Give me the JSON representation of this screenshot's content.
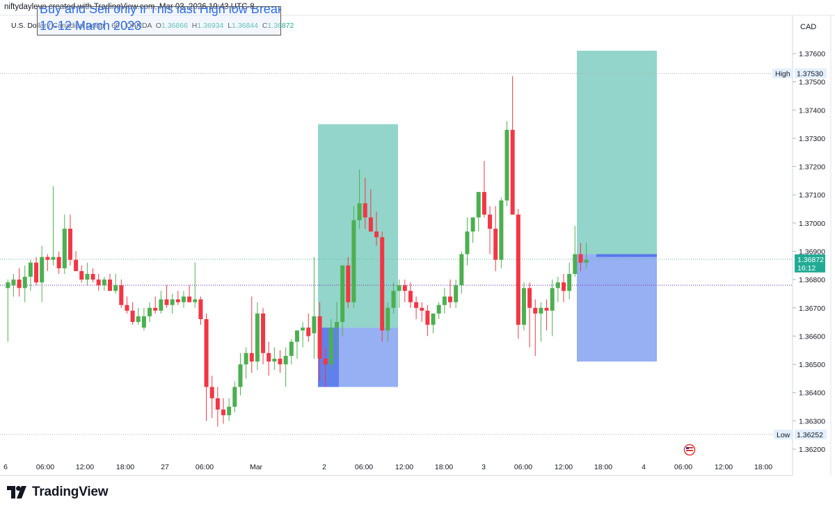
{
  "byline": "niftydayleve created with TradingView.com, Mar 03, 2026 19:43 UTC-8",
  "symbol": {
    "name": "U.S. Dollar / Canadian Dollar",
    "timeframe": "60",
    "exchange": "OANDA",
    "open_label": "O",
    "open": "1.36866",
    "high_label": "H",
    "high": "1.36934",
    "low_label": "L",
    "low": "1.36844",
    "close_label": "C",
    "close": "1.36872"
  },
  "note": {
    "line1": "Buy and Sell only if This last High low Breaks",
    "line2": "10-12 March 2023"
  },
  "currency": "CAD",
  "brand": "TradingView",
  "markers": {
    "high_label": "High",
    "high_value": "1.37530",
    "low_label": "Low",
    "low_value": "1.36252",
    "last_price": "1.36872",
    "countdown": "16:12"
  },
  "colors": {
    "up": "#26a69a",
    "up_body": "#4caf50",
    "down": "#f23645",
    "target_zone": "#8dd3c7",
    "stop_zone": "#8ea8f2",
    "dotted_line": "#8a45b6"
  },
  "chart_data": {
    "type": "candlestick",
    "y_ticks": [
      "1.36200",
      "1.36300",
      "1.36400",
      "1.36500",
      "1.36600",
      "1.36700",
      "1.36800",
      "1.36900",
      "1.37000",
      "1.37100",
      "1.37200",
      "1.37300",
      "1.37400",
      "1.37500",
      "1.37600"
    ],
    "x_ticks": [
      "6",
      "06:00",
      "12:00",
      "18:00",
      "27",
      "06:00",
      "Mar",
      "2",
      "06:00",
      "12:00",
      "18:00",
      "3",
      "06:00",
      "12:00",
      "18:00",
      "4",
      "06:00",
      "12:00",
      "18:00"
    ],
    "ylim": [
      1.3618,
      1.377
    ],
    "high": 1.3753,
    "low": 1.36252,
    "reference_level": 1.3678,
    "last_price": 1.36872,
    "positions": [
      {
        "type": "long",
        "entry": 1.3663,
        "target": 1.3735,
        "stop": 1.3642
      },
      {
        "type": "long",
        "entry": 1.3689,
        "target": 1.3761,
        "stop": 1.3651
      }
    ],
    "ohlc": [
      [
        1.3677,
        1.368,
        1.3658,
        1.3679
      ],
      [
        1.3678,
        1.3682,
        1.3674,
        1.368
      ],
      [
        1.368,
        1.3684,
        1.3674,
        1.3677
      ],
      [
        1.3677,
        1.3685,
        1.3672,
        1.3681
      ],
      [
        1.3681,
        1.3687,
        1.3676,
        1.3686
      ],
      [
        1.3686,
        1.3688,
        1.3678,
        1.3679
      ],
      [
        1.3679,
        1.3692,
        1.3672,
        1.3688
      ],
      [
        1.3688,
        1.3689,
        1.3683,
        1.3687
      ],
      [
        1.3687,
        1.3713,
        1.3685,
        1.3688
      ],
      [
        1.3688,
        1.369,
        1.3682,
        1.3684
      ],
      [
        1.3684,
        1.3703,
        1.3682,
        1.3698
      ],
      [
        1.3698,
        1.3703,
        1.3685,
        1.3687
      ],
      [
        1.3687,
        1.369,
        1.3683,
        1.3683
      ],
      [
        1.3683,
        1.3685,
        1.3679,
        1.368
      ],
      [
        1.368,
        1.3686,
        1.3678,
        1.3682
      ],
      [
        1.3682,
        1.3684,
        1.3679,
        1.368
      ],
      [
        1.368,
        1.3682,
        1.3676,
        1.3678
      ],
      [
        1.3678,
        1.3681,
        1.3676,
        1.368
      ],
      [
        1.368,
        1.3682,
        1.3677,
        1.3676
      ],
      [
        1.3676,
        1.3682,
        1.3675,
        1.3678
      ],
      [
        1.3678,
        1.368,
        1.367,
        1.3671
      ],
      [
        1.3671,
        1.3674,
        1.3668,
        1.3669
      ],
      [
        1.3669,
        1.3672,
        1.3664,
        1.3665
      ],
      [
        1.3665,
        1.367,
        1.3664,
        1.3667
      ],
      [
        1.3663,
        1.367,
        1.3662,
        1.3667
      ],
      [
        1.3667,
        1.3672,
        1.3665,
        1.367
      ],
      [
        1.367,
        1.3674,
        1.3668,
        1.3669
      ],
      [
        1.3669,
        1.3676,
        1.3668,
        1.3673
      ],
      [
        1.3673,
        1.3678,
        1.367,
        1.3671
      ],
      [
        1.3671,
        1.3675,
        1.3668,
        1.3673
      ],
      [
        1.3673,
        1.3676,
        1.3671,
        1.3672
      ],
      [
        1.3672,
        1.3676,
        1.367,
        1.3674
      ],
      [
        1.3674,
        1.3678,
        1.3672,
        1.3672
      ],
      [
        1.3672,
        1.3686,
        1.367,
        1.3673
      ],
      [
        1.3673,
        1.3674,
        1.3664,
        1.3666
      ],
      [
        1.3666,
        1.3668,
        1.363,
        1.3642
      ],
      [
        1.3642,
        1.3646,
        1.3631,
        1.3638
      ],
      [
        1.3638,
        1.3642,
        1.3628,
        1.3634
      ],
      [
        1.3634,
        1.3638,
        1.3629,
        1.3632
      ],
      [
        1.3632,
        1.3638,
        1.363,
        1.3635
      ],
      [
        1.3635,
        1.3644,
        1.3633,
        1.3642
      ],
      [
        1.3642,
        1.3654,
        1.3639,
        1.365
      ],
      [
        1.365,
        1.3656,
        1.3645,
        1.3654
      ],
      [
        1.3654,
        1.3674,
        1.3647,
        1.3651
      ],
      [
        1.3651,
        1.3672,
        1.3648,
        1.3668
      ],
      [
        1.3668,
        1.367,
        1.365,
        1.3654
      ],
      [
        1.3654,
        1.3658,
        1.3646,
        1.3651
      ],
      [
        1.3651,
        1.3656,
        1.3648,
        1.3652
      ],
      [
        1.3652,
        1.3655,
        1.3647,
        1.365
      ],
      [
        1.365,
        1.3656,
        1.3642,
        1.3653
      ],
      [
        1.3653,
        1.3659,
        1.365,
        1.3658
      ],
      [
        1.3658,
        1.3661,
        1.3652,
        1.3662
      ],
      [
        1.3662,
        1.3665,
        1.3656,
        1.3663
      ],
      [
        1.3663,
        1.3668,
        1.3658,
        1.366
      ],
      [
        1.3661,
        1.3688,
        1.3652,
        1.3667
      ],
      [
        1.3667,
        1.3672,
        1.3644,
        1.3652
      ],
      [
        1.3652,
        1.3656,
        1.3642,
        1.365
      ],
      [
        1.365,
        1.3666,
        1.3648,
        1.3663
      ],
      [
        1.3663,
        1.3672,
        1.3652,
        1.3665
      ],
      [
        1.3665,
        1.3685,
        1.366,
        1.3685
      ],
      [
        1.3685,
        1.3688,
        1.367,
        1.3672
      ],
      [
        1.3672,
        1.3706,
        1.367,
        1.3701
      ],
      [
        1.3701,
        1.3719,
        1.3698,
        1.3707
      ],
      [
        1.3707,
        1.3716,
        1.3698,
        1.3702
      ],
      [
        1.3702,
        1.3712,
        1.3697,
        1.3697
      ],
      [
        1.3697,
        1.3704,
        1.3692,
        1.3695
      ],
      [
        1.3695,
        1.3697,
        1.3658,
        1.3662
      ],
      [
        1.3662,
        1.3672,
        1.3658,
        1.367
      ],
      [
        1.367,
        1.3679,
        1.3668,
        1.3676
      ],
      [
        1.3676,
        1.368,
        1.367,
        1.3678
      ],
      [
        1.3678,
        1.368,
        1.3672,
        1.3676
      ],
      [
        1.3676,
        1.3679,
        1.367,
        1.3672
      ],
      [
        1.3672,
        1.3674,
        1.3666,
        1.367
      ],
      [
        1.367,
        1.3672,
        1.3665,
        1.3669
      ],
      [
        1.3669,
        1.3671,
        1.366,
        1.3664
      ],
      [
        1.3664,
        1.3668,
        1.3661,
        1.3668
      ],
      [
        1.3668,
        1.3672,
        1.3666,
        1.3671
      ],
      [
        1.3671,
        1.3677,
        1.3668,
        1.3674
      ],
      [
        1.3674,
        1.368,
        1.367,
        1.3672
      ],
      [
        1.3672,
        1.368,
        1.367,
        1.3678
      ],
      [
        1.3678,
        1.369,
        1.3675,
        1.3689
      ],
      [
        1.3689,
        1.3702,
        1.3685,
        1.3697
      ],
      [
        1.3697,
        1.3702,
        1.3693,
        1.3702
      ],
      [
        1.3702,
        1.3711,
        1.3697,
        1.3711
      ],
      [
        1.3711,
        1.3722,
        1.3702,
        1.3703
      ],
      [
        1.3703,
        1.3706,
        1.3689,
        1.3698
      ],
      [
        1.3698,
        1.3706,
        1.3683,
        1.3687
      ],
      [
        1.3687,
        1.3709,
        1.3684,
        1.3708
      ],
      [
        1.3708,
        1.3736,
        1.3706,
        1.3733
      ],
      [
        1.3733,
        1.3752,
        1.3703,
        1.3703
      ],
      [
        1.3703,
        1.3705,
        1.3659,
        1.3664
      ],
      [
        1.3664,
        1.3679,
        1.3662,
        1.3677
      ],
      [
        1.3677,
        1.3679,
        1.3656,
        1.367
      ],
      [
        1.367,
        1.3673,
        1.3653,
        1.3668
      ],
      [
        1.3668,
        1.3672,
        1.3658,
        1.367
      ],
      [
        1.367,
        1.3673,
        1.3662,
        1.3669
      ],
      [
        1.3669,
        1.368,
        1.366,
        1.3677
      ],
      [
        1.3677,
        1.3681,
        1.3672,
        1.3679
      ],
      [
        1.3679,
        1.3682,
        1.3672,
        1.3676
      ],
      [
        1.3676,
        1.3686,
        1.3673,
        1.3682
      ],
      [
        1.3682,
        1.3699,
        1.3681,
        1.3689
      ],
      [
        1.3689,
        1.3693,
        1.3683,
        1.3686
      ],
      [
        1.3686,
        1.3693,
        1.3684,
        1.3687
      ]
    ]
  }
}
